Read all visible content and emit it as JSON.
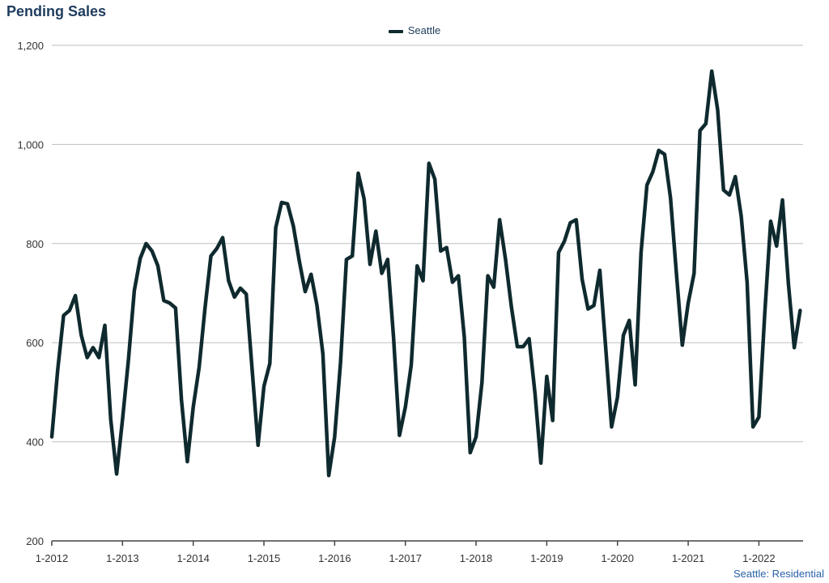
{
  "chart_data": {
    "type": "line",
    "title": "Pending Sales",
    "source_label": "Seattle: Residential",
    "legend": "top-center",
    "grid": true,
    "ylim": [
      200,
      1200
    ],
    "yticks": [
      "200",
      "400",
      "600",
      "800",
      "1,000",
      "1,200"
    ],
    "ytick_values": [
      200,
      400,
      600,
      800,
      1000,
      1200
    ],
    "xticks": [
      "1-2012",
      "1-2013",
      "1-2014",
      "1-2015",
      "1-2016",
      "1-2017",
      "1-2018",
      "1-2019",
      "1-2020",
      "1-2021",
      "1-2022"
    ],
    "colors": {
      "line": "#0f2a2e",
      "grid": "#bfbfbf",
      "title": "#1f3c5e",
      "source": "#2a62a8"
    },
    "series": [
      {
        "name": "Seattle",
        "start": "2012-01",
        "frequency": "monthly",
        "values": [
          410,
          545,
          655,
          665,
          695,
          615,
          570,
          590,
          570,
          635,
          445,
          335,
          445,
          565,
          705,
          770,
          800,
          785,
          755,
          685,
          680,
          670,
          485,
          360,
          470,
          550,
          670,
          775,
          790,
          812,
          725,
          692,
          710,
          698,
          545,
          393,
          512,
          558,
          832,
          883,
          880,
          835,
          765,
          703,
          738,
          675,
          578,
          332,
          410,
          560,
          768,
          775,
          942,
          890,
          758,
          825,
          740,
          768,
          610,
          413,
          470,
          555,
          755,
          725,
          962,
          930,
          785,
          792,
          722,
          735,
          612,
          378,
          410,
          520,
          735,
          712,
          848,
          768,
          672,
          592,
          592,
          608,
          498,
          357,
          532,
          443,
          782,
          805,
          842,
          848,
          728,
          668,
          675,
          746,
          590,
          430,
          490,
          615,
          645,
          515,
          782,
          918,
          945,
          988,
          980,
          892,
          740,
          595,
          680,
          740,
          1028,
          1042,
          1148,
          1070,
          908,
          898,
          935,
          855,
          722,
          430,
          450,
          660,
          845,
          795,
          888,
          720,
          590,
          665
        ]
      }
    ]
  }
}
